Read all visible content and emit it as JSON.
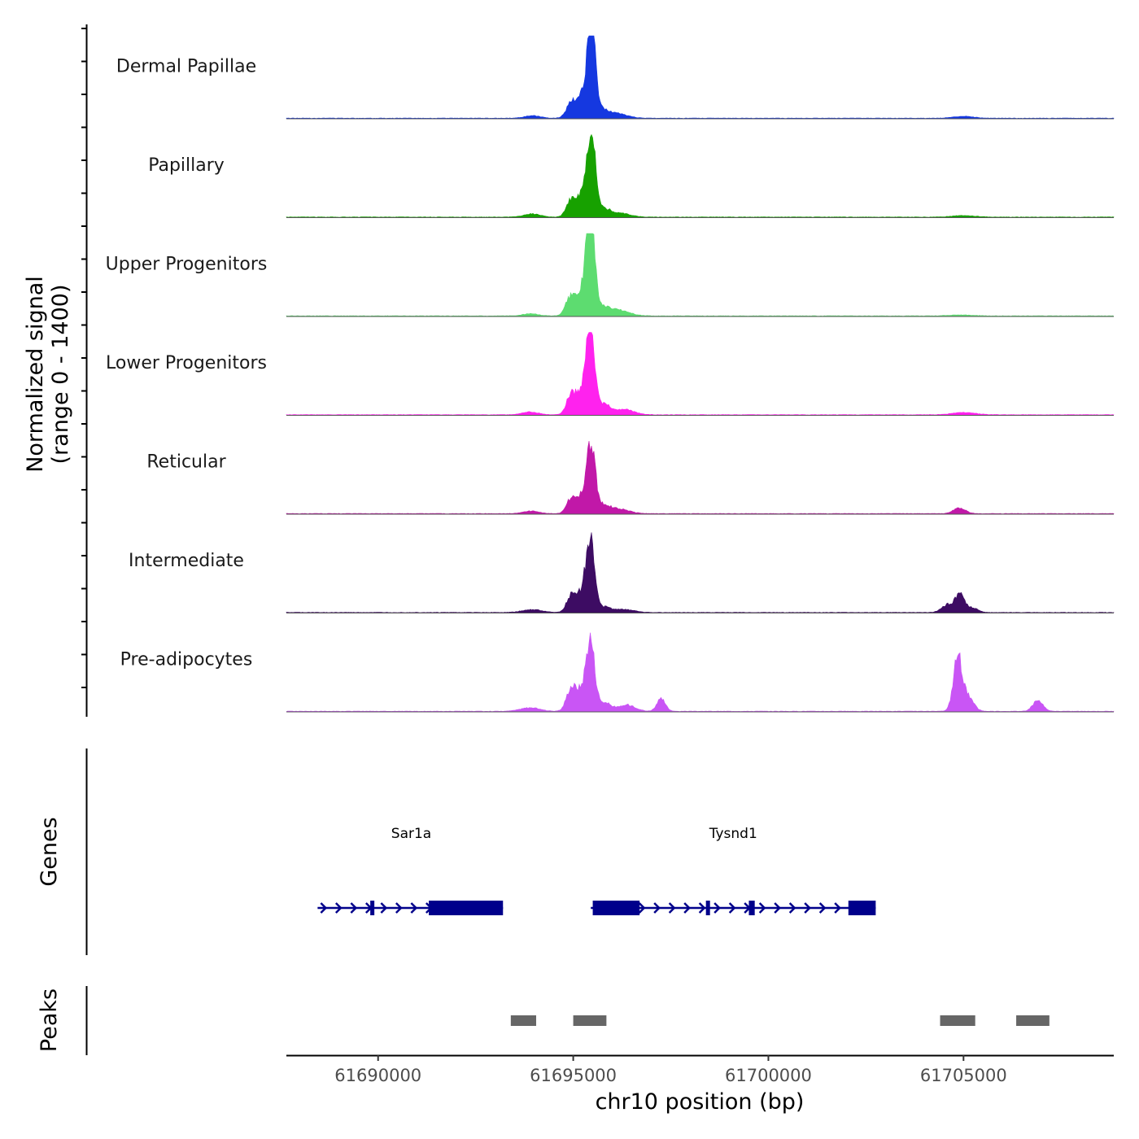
{
  "chart_data": {
    "type": "area",
    "title": "",
    "chromosome": "chr10",
    "xlabel": "chr10 position (bp)",
    "ylabel": [
      "Normalized signal",
      "(range 0 - 1400)"
    ],
    "ylim": [
      0,
      1400
    ],
    "xlim": [
      61687650,
      61708850
    ],
    "x_ticks": [
      61690000,
      61695000,
      61700000,
      61705000
    ],
    "x_tick_labels": [
      "61690000",
      "61695000",
      "61700000",
      "61705000"
    ],
    "tracks": [
      {
        "name": "Dermal Papillae",
        "color": "#1538e0",
        "peaks": [
          {
            "center": 61695470,
            "height": 1100,
            "width": 110
          },
          {
            "center": 61695260,
            "height": 330,
            "width": 180
          },
          {
            "center": 61694930,
            "height": 160,
            "width": 120
          },
          {
            "center": 61695800,
            "height": 90,
            "width": 160
          },
          {
            "center": 61696150,
            "height": 60,
            "width": 250
          },
          {
            "center": 61693950,
            "height": 35,
            "width": 200
          },
          {
            "center": 61705000,
            "height": 25,
            "width": 250
          }
        ]
      },
      {
        "name": "Papillary",
        "color": "#17a100",
        "peaks": [
          {
            "center": 61695470,
            "height": 1100,
            "width": 110
          },
          {
            "center": 61695220,
            "height": 290,
            "width": 180
          },
          {
            "center": 61694910,
            "height": 170,
            "width": 110
          },
          {
            "center": 61695800,
            "height": 100,
            "width": 160
          },
          {
            "center": 61696200,
            "height": 55,
            "width": 250
          },
          {
            "center": 61693950,
            "height": 45,
            "width": 200
          },
          {
            "center": 61705000,
            "height": 20,
            "width": 300
          }
        ]
      },
      {
        "name": "Upper Progenitors",
        "color": "#5ddc70",
        "peaks": [
          {
            "center": 61695440,
            "height": 1350,
            "width": 110
          },
          {
            "center": 61695200,
            "height": 300,
            "width": 180
          },
          {
            "center": 61694900,
            "height": 200,
            "width": 110
          },
          {
            "center": 61695800,
            "height": 110,
            "width": 160
          },
          {
            "center": 61696200,
            "height": 80,
            "width": 250
          },
          {
            "center": 61693900,
            "height": 30,
            "width": 200
          },
          {
            "center": 61704900,
            "height": 15,
            "width": 300
          }
        ]
      },
      {
        "name": "Lower Progenitors",
        "color": "#ff22ee",
        "peaks": [
          {
            "center": 61695440,
            "height": 1150,
            "width": 115
          },
          {
            "center": 61695200,
            "height": 280,
            "width": 170
          },
          {
            "center": 61694930,
            "height": 230,
            "width": 110
          },
          {
            "center": 61695800,
            "height": 130,
            "width": 160
          },
          {
            "center": 61696300,
            "height": 75,
            "width": 250
          },
          {
            "center": 61693900,
            "height": 40,
            "width": 200
          },
          {
            "center": 61705000,
            "height": 30,
            "width": 300
          }
        ]
      },
      {
        "name": "Reticular",
        "color": "#c118a8",
        "peaks": [
          {
            "center": 61695460,
            "height": 900,
            "width": 110
          },
          {
            "center": 61695200,
            "height": 240,
            "width": 170
          },
          {
            "center": 61694930,
            "height": 160,
            "width": 110
          },
          {
            "center": 61695800,
            "height": 110,
            "width": 160
          },
          {
            "center": 61696200,
            "height": 60,
            "width": 250
          },
          {
            "center": 61693900,
            "height": 35,
            "width": 200
          },
          {
            "center": 61704900,
            "height": 80,
            "width": 150
          }
        ]
      },
      {
        "name": "Intermediate",
        "color": "#3d0c63",
        "peaks": [
          {
            "center": 61695440,
            "height": 950,
            "width": 110
          },
          {
            "center": 61695200,
            "height": 250,
            "width": 170
          },
          {
            "center": 61694930,
            "height": 180,
            "width": 110
          },
          {
            "center": 61695800,
            "height": 70,
            "width": 160
          },
          {
            "center": 61696300,
            "height": 45,
            "width": 250
          },
          {
            "center": 61693950,
            "height": 40,
            "width": 250
          },
          {
            "center": 61704900,
            "height": 250,
            "width": 110
          },
          {
            "center": 61704600,
            "height": 110,
            "width": 150
          },
          {
            "center": 61705200,
            "height": 70,
            "width": 150
          }
        ]
      },
      {
        "name": "Pre-adipocytes",
        "color": "#c955f5",
        "peaks": [
          {
            "center": 61695440,
            "height": 950,
            "width": 110
          },
          {
            "center": 61695150,
            "height": 280,
            "width": 170
          },
          {
            "center": 61694920,
            "height": 220,
            "width": 110
          },
          {
            "center": 61695800,
            "height": 120,
            "width": 180
          },
          {
            "center": 61696400,
            "height": 90,
            "width": 200
          },
          {
            "center": 61697250,
            "height": 170,
            "width": 110
          },
          {
            "center": 61693900,
            "height": 50,
            "width": 250
          },
          {
            "center": 61704850,
            "height": 750,
            "width": 110
          },
          {
            "center": 61705100,
            "height": 200,
            "width": 150
          },
          {
            "center": 61706900,
            "height": 150,
            "width": 130
          }
        ]
      }
    ],
    "genes_track_title": "Genes",
    "genes": [
      {
        "name": "Sar1a",
        "strand": "+",
        "start": 61688450,
        "end": 61693200,
        "label_position": 61690850,
        "exons": [
          [
            61689800,
            61689900
          ],
          [
            61691300,
            61693200
          ]
        ]
      },
      {
        "name": "Tysnd1",
        "strand": "+",
        "start": 61695450,
        "end": 61702750,
        "label_position": 61699100,
        "exons": [
          [
            61695500,
            61696700
          ],
          [
            61698400,
            61698500
          ],
          [
            61699500,
            61699650
          ],
          [
            61702050,
            61702750
          ]
        ]
      }
    ],
    "gene_color": "#00008b",
    "peaks_track_title": "Peaks",
    "peak_regions": [
      [
        61693400,
        61694050
      ],
      [
        61695000,
        61695850
      ],
      [
        61704400,
        61705300
      ],
      [
        61706350,
        61707200
      ]
    ],
    "peak_color": "#666666"
  }
}
